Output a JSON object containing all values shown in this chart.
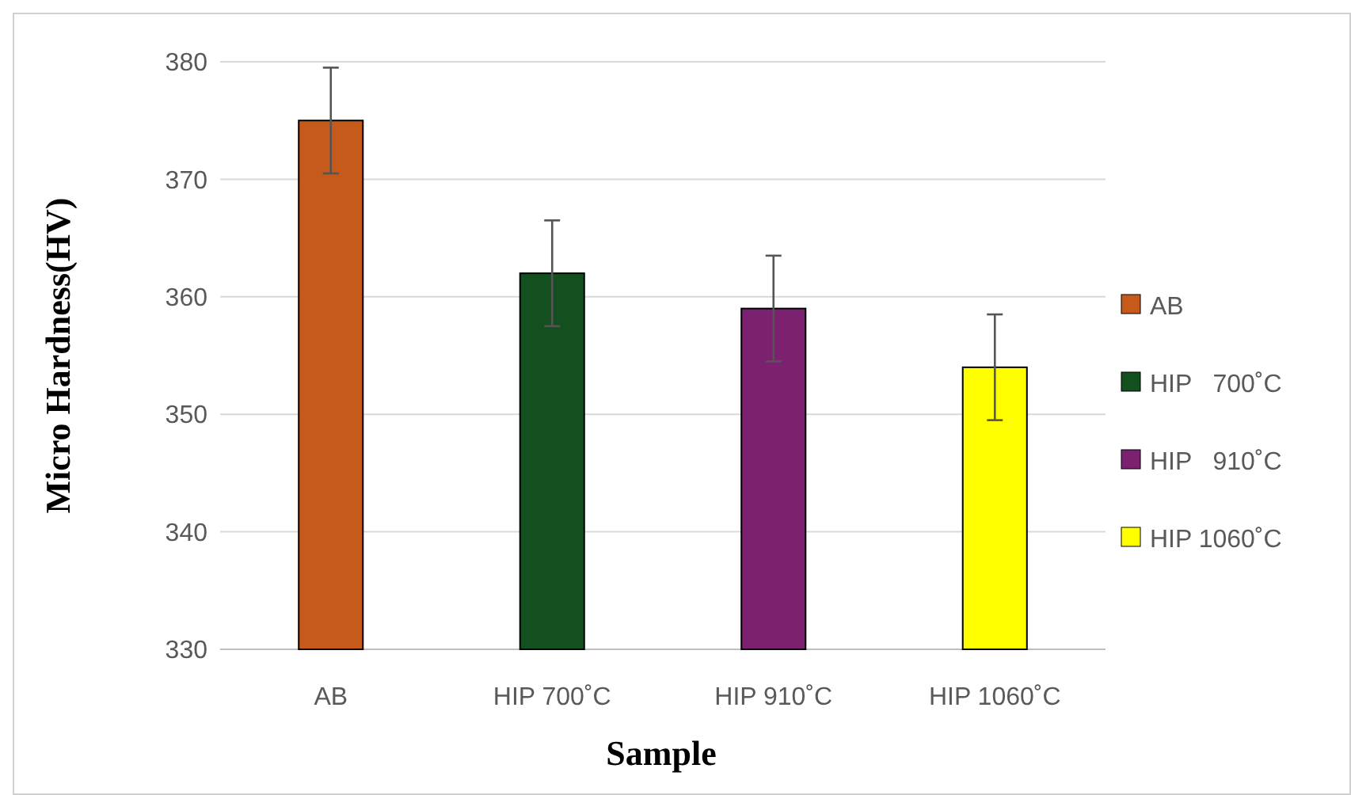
{
  "chart_data": {
    "type": "bar",
    "xlabel": "Sample",
    "ylabel": "Micro Hardness(HV)",
    "categories": [
      "AB",
      "HIP 700˚C",
      "HIP 910˚C",
      "HIP 1060˚C"
    ],
    "series": [
      {
        "name": "AB",
        "color": "#c55a1b",
        "values": [
          375,
          null,
          null,
          null
        ],
        "errors": [
          4.5,
          null,
          null,
          null
        ]
      },
      {
        "name": "HIP   700˚C",
        "color": "#134f1f",
        "values": [
          null,
          362,
          null,
          null
        ],
        "errors": [
          null,
          4.5,
          null,
          null
        ]
      },
      {
        "name": "HIP   910˚C",
        "color": "#7b2170",
        "values": [
          null,
          null,
          359,
          null
        ],
        "errors": [
          null,
          null,
          4.5,
          null
        ]
      },
      {
        "name": "HIP 1060˚C",
        "color": "#ffff00",
        "values": [
          null,
          null,
          null,
          354
        ],
        "errors": [
          null,
          null,
          null,
          4.5
        ]
      }
    ],
    "ylim": [
      330,
      380
    ],
    "yticks": [
      330,
      340,
      350,
      360,
      370,
      380
    ],
    "grid": "y",
    "legend": "right"
  }
}
